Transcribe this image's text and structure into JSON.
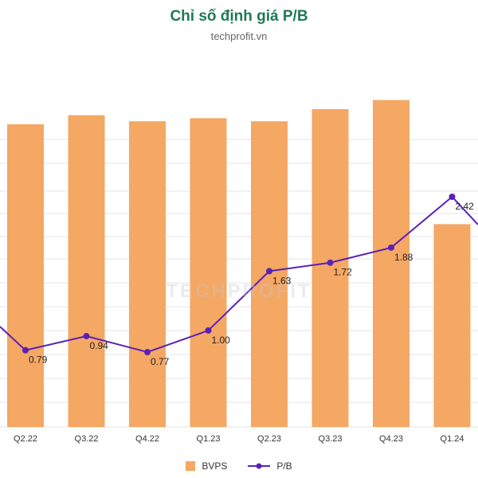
{
  "header": {
    "title": "Chỉ số định giá P/B",
    "subtitle": "techprofit.vn"
  },
  "watermark": "TECHPROFIT",
  "legend": {
    "bar_label": "BVPS",
    "line_label": "P/B"
  },
  "colors": {
    "bar": "#f5a764",
    "line": "#5b21b6",
    "grid": "#e5e5e5",
    "title": "#1f7a55"
  },
  "chart_data": {
    "type": "bar",
    "categories": [
      "Q2.22",
      "Q3.22",
      "Q4.22",
      "Q1.23",
      "Q2.23",
      "Q3.23",
      "Q4.23",
      "Q1.24"
    ],
    "series": [
      {
        "name": "BVPS",
        "type": "bar",
        "values": [
          100,
          103,
          101,
          102,
          101,
          105,
          108,
          67
        ]
      },
      {
        "name": "P/B",
        "type": "line",
        "values": [
          0.79,
          0.94,
          0.77,
          1.0,
          1.63,
          1.72,
          1.88,
          2.42
        ]
      }
    ],
    "grid": true,
    "legend_position": "bottom"
  }
}
